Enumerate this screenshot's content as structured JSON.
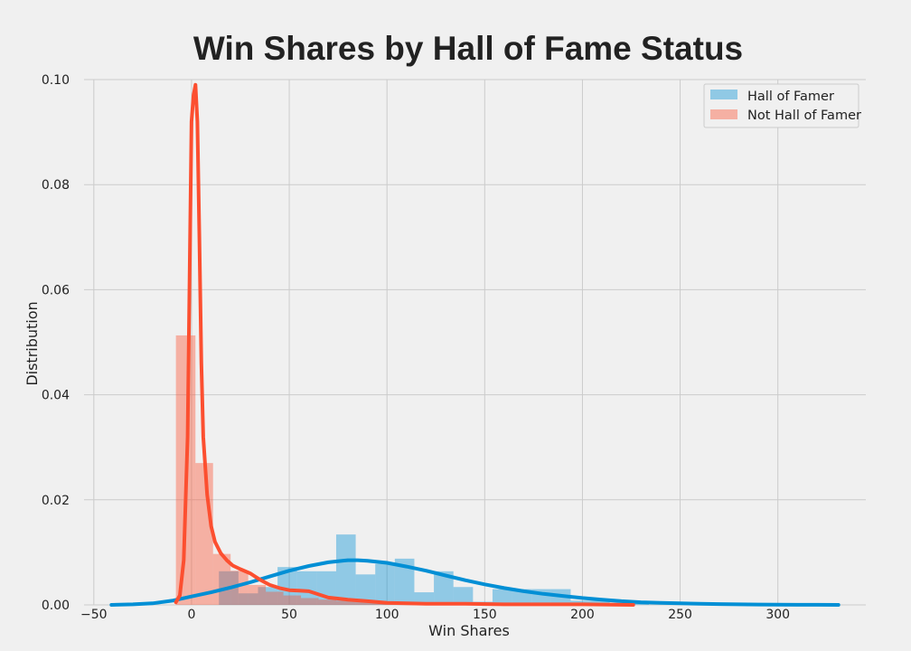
{
  "chart_data": {
    "type": "bar",
    "title": "Win Shares by Hall of Fame Status",
    "xlabel": "Win Shares",
    "ylabel": "Distribution",
    "xlim": [
      -55,
      345
    ],
    "ylim": [
      0,
      0.1
    ],
    "xticks": [
      -50,
      0,
      50,
      100,
      150,
      200,
      250,
      300
    ],
    "yticks": [
      0.0,
      0.02,
      0.04,
      0.06,
      0.08,
      0.1
    ],
    "xtick_labels": [
      "−50",
      "0",
      "50",
      "100",
      "150",
      "200",
      "250",
      "300"
    ],
    "ytick_labels": [
      "0.00",
      "0.02",
      "0.04",
      "0.06",
      "0.08",
      "0.10"
    ],
    "grid": true,
    "legend_position": "top-right",
    "series": [
      {
        "name": "Hall of Famer",
        "color": "#008fd5",
        "histogram": [
          {
            "x0": 14,
            "x1": 24,
            "density": 0.0064
          },
          {
            "x0": 24,
            "x1": 34,
            "density": 0.0022
          },
          {
            "x0": 34,
            "x1": 44,
            "density": 0.0034
          },
          {
            "x0": 44,
            "x1": 54,
            "density": 0.0072
          },
          {
            "x0": 54,
            "x1": 64,
            "density": 0.0064
          },
          {
            "x0": 64,
            "x1": 74,
            "density": 0.0064
          },
          {
            "x0": 74,
            "x1": 84,
            "density": 0.0134
          },
          {
            "x0": 84,
            "x1": 94,
            "density": 0.0058
          },
          {
            "x0": 94,
            "x1": 104,
            "density": 0.0078
          },
          {
            "x0": 104,
            "x1": 114,
            "density": 0.0088
          },
          {
            "x0": 114,
            "x1": 124,
            "density": 0.0024
          },
          {
            "x0": 124,
            "x1": 134,
            "density": 0.0064
          },
          {
            "x0": 134,
            "x1": 144,
            "density": 0.0034
          },
          {
            "x0": 144,
            "x1": 154,
            "density": 0.0006
          },
          {
            "x0": 154,
            "x1": 164,
            "density": 0.003
          },
          {
            "x0": 164,
            "x1": 174,
            "density": 0.003
          },
          {
            "x0": 174,
            "x1": 184,
            "density": 0.003
          },
          {
            "x0": 184,
            "x1": 194,
            "density": 0.003
          },
          {
            "x0": 194,
            "x1": 204,
            "density": 0.0008
          },
          {
            "x0": 204,
            "x1": 214,
            "density": 0.0008
          },
          {
            "x0": 214,
            "x1": 224,
            "density": 0.0004
          },
          {
            "x0": 224,
            "x1": 234,
            "density": 0.0004
          },
          {
            "x0": 254,
            "x1": 264,
            "density": 0.0004
          },
          {
            "x0": 264,
            "x1": 274,
            "density": 0.0004
          }
        ],
        "kde": {
          "x": [
            -41,
            -30,
            -20,
            -10,
            0,
            10,
            20,
            30,
            40,
            50,
            60,
            70,
            80,
            85,
            90,
            100,
            110,
            120,
            130,
            140,
            150,
            160,
            170,
            180,
            190,
            200,
            210,
            220,
            230,
            240,
            250,
            260,
            270,
            280,
            290,
            300,
            310,
            320,
            331
          ],
          "y": [
            0.0,
            0.0001,
            0.0003,
            0.0008,
            0.0016,
            0.0024,
            0.0033,
            0.0043,
            0.0054,
            0.0065,
            0.0074,
            0.0081,
            0.0085,
            0.0085,
            0.0084,
            0.008,
            0.0073,
            0.0065,
            0.0056,
            0.0047,
            0.0039,
            0.0032,
            0.0026,
            0.0021,
            0.0017,
            0.0013,
            0.001,
            0.0007,
            0.0005,
            0.0004,
            0.0003,
            0.0002,
            0.00015,
            0.0001,
            7e-05,
            4e-05,
            2e-05,
            1e-05,
            0.0
          ]
        }
      },
      {
        "name": "Not Hall of Famer",
        "color": "#fc4f30",
        "histogram": [
          {
            "x0": -8,
            "x1": 2,
            "density": 0.0513
          },
          {
            "x0": 2,
            "x1": 11,
            "density": 0.027
          },
          {
            "x0": 11,
            "x1": 20,
            "density": 0.0097
          },
          {
            "x0": 20,
            "x1": 29,
            "density": 0.0065
          },
          {
            "x0": 29,
            "x1": 38,
            "density": 0.0038
          },
          {
            "x0": 38,
            "x1": 47,
            "density": 0.0025
          },
          {
            "x0": 47,
            "x1": 56,
            "density": 0.0018
          },
          {
            "x0": 56,
            "x1": 65,
            "density": 0.0013
          },
          {
            "x0": 65,
            "x1": 74,
            "density": 0.001
          },
          {
            "x0": 74,
            "x1": 83,
            "density": 0.0008
          },
          {
            "x0": 83,
            "x1": 92,
            "density": 0.0006
          },
          {
            "x0": 92,
            "x1": 101,
            "density": 0.0005
          },
          {
            "x0": 101,
            "x1": 110,
            "density": 0.0004
          },
          {
            "x0": 110,
            "x1": 119,
            "density": 0.0003
          },
          {
            "x0": 119,
            "x1": 128,
            "density": 0.0003
          },
          {
            "x0": 128,
            "x1": 137,
            "density": 0.0002
          },
          {
            "x0": 137,
            "x1": 146,
            "density": 0.0002
          },
          {
            "x0": 146,
            "x1": 155,
            "density": 0.0002
          },
          {
            "x0": 155,
            "x1": 164,
            "density": 0.0001
          },
          {
            "x0": 164,
            "x1": 173,
            "density": 0.0001
          },
          {
            "x0": 173,
            "x1": 182,
            "density": 0.0001
          },
          {
            "x0": 182,
            "x1": 191,
            "density": 0.0001
          },
          {
            "x0": 191,
            "x1": 200,
            "density": 0.0001
          },
          {
            "x0": 200,
            "x1": 209,
            "density": 0.0001
          },
          {
            "x0": 209,
            "x1": 218,
            "density": 0.0001
          },
          {
            "x0": 218,
            "x1": 227,
            "density": 0.0001
          }
        ],
        "kde": {
          "x": [
            -8,
            -6,
            -4,
            -2,
            0,
            1,
            2,
            3,
            4,
            5,
            6,
            8,
            10,
            12,
            15,
            18,
            21,
            25,
            30,
            35,
            40,
            45,
            50,
            55,
            60,
            65,
            70,
            80,
            90,
            100,
            110,
            120,
            140,
            160,
            180,
            200,
            226
          ],
          "y": [
            0.0005,
            0.0018,
            0.0085,
            0.032,
            0.092,
            0.097,
            0.099,
            0.092,
            0.07,
            0.046,
            0.032,
            0.021,
            0.015,
            0.012,
            0.0098,
            0.0085,
            0.0075,
            0.0068,
            0.006,
            0.0048,
            0.0038,
            0.0032,
            0.0028,
            0.0027,
            0.0026,
            0.002,
            0.0014,
            0.001,
            0.0007,
            0.0004,
            0.0003,
            0.0002,
            0.0002,
            0.0001,
            0.0001,
            0.0001,
            0.0
          ]
        }
      }
    ]
  }
}
